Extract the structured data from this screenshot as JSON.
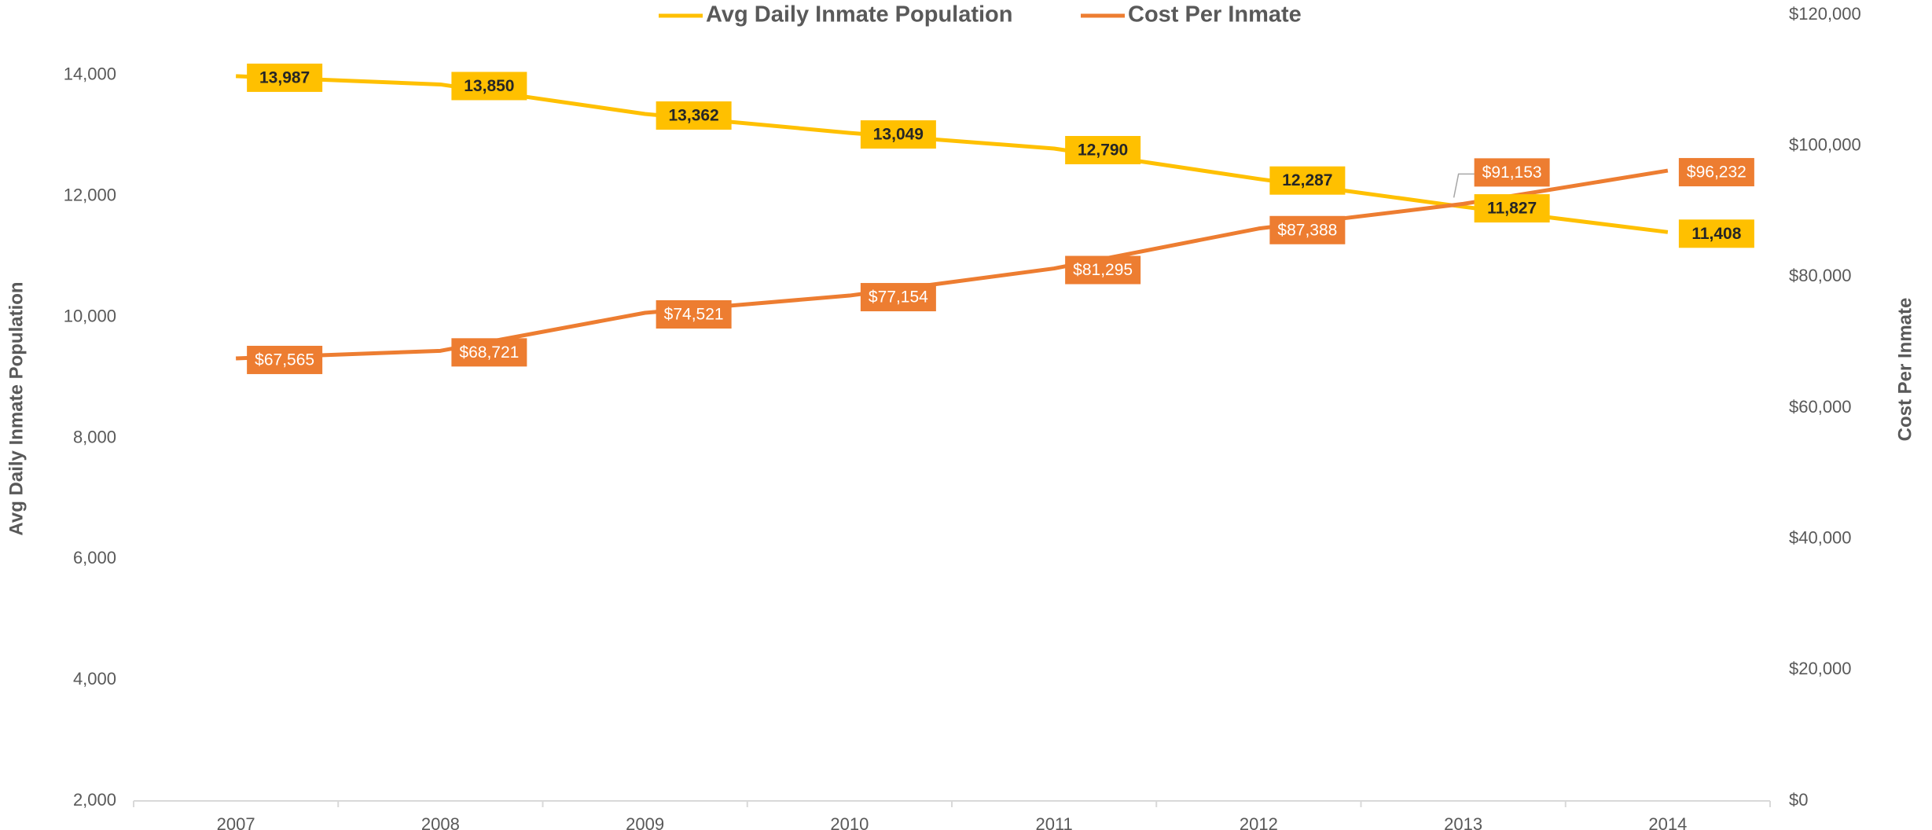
{
  "chart_data": {
    "type": "line",
    "categories": [
      "2007",
      "2008",
      "2009",
      "2010",
      "2011",
      "2012",
      "2013",
      "2014"
    ],
    "series": [
      {
        "name": "Avg Daily Inmate Population",
        "color": "#FFC000",
        "axis": "y",
        "values": [
          13987,
          13850,
          13362,
          13049,
          12790,
          12287,
          11827,
          11408
        ],
        "value_labels": [
          "13,987",
          "13,850",
          "13,362",
          "13,049",
          "12,790",
          "12,287",
          "11,827",
          "11,408"
        ]
      },
      {
        "name": "Cost Per Inmate",
        "color": "#ED7D31",
        "axis": "y2",
        "values": [
          67565,
          68721,
          74521,
          77154,
          81295,
          87388,
          91153,
          96232
        ],
        "value_labels": [
          "$67,565",
          "$68,721",
          "$74,521",
          "$77,154",
          "$81,295",
          "$87,388",
          "$91,153",
          "$96,232"
        ]
      }
    ],
    "ylabel": "Avg Daily Inmate Population",
    "y2label": "Cost Per Inmate",
    "ylim": [
      2000,
      15000
    ],
    "yticks": [
      {
        "value": 2000,
        "label": "2,000"
      },
      {
        "value": 4000,
        "label": "4,000"
      },
      {
        "value": 6000,
        "label": "6,000"
      },
      {
        "value": 8000,
        "label": "8,000"
      },
      {
        "value": 10000,
        "label": "10,000"
      },
      {
        "value": 12000,
        "label": "12,000"
      },
      {
        "value": 14000,
        "label": "14,000"
      }
    ],
    "y2lim": [
      0,
      120000
    ],
    "y2ticks": [
      {
        "value": 0,
        "label": "$0"
      },
      {
        "value": 20000,
        "label": "$20,000"
      },
      {
        "value": 40000,
        "label": "$40,000"
      },
      {
        "value": 60000,
        "label": "$60,000"
      },
      {
        "value": 80000,
        "label": "$80,000"
      },
      {
        "value": 100000,
        "label": "$100,000"
      },
      {
        "value": 120000,
        "label": "$120,000"
      }
    ],
    "legend": "top",
    "grid": false
  }
}
